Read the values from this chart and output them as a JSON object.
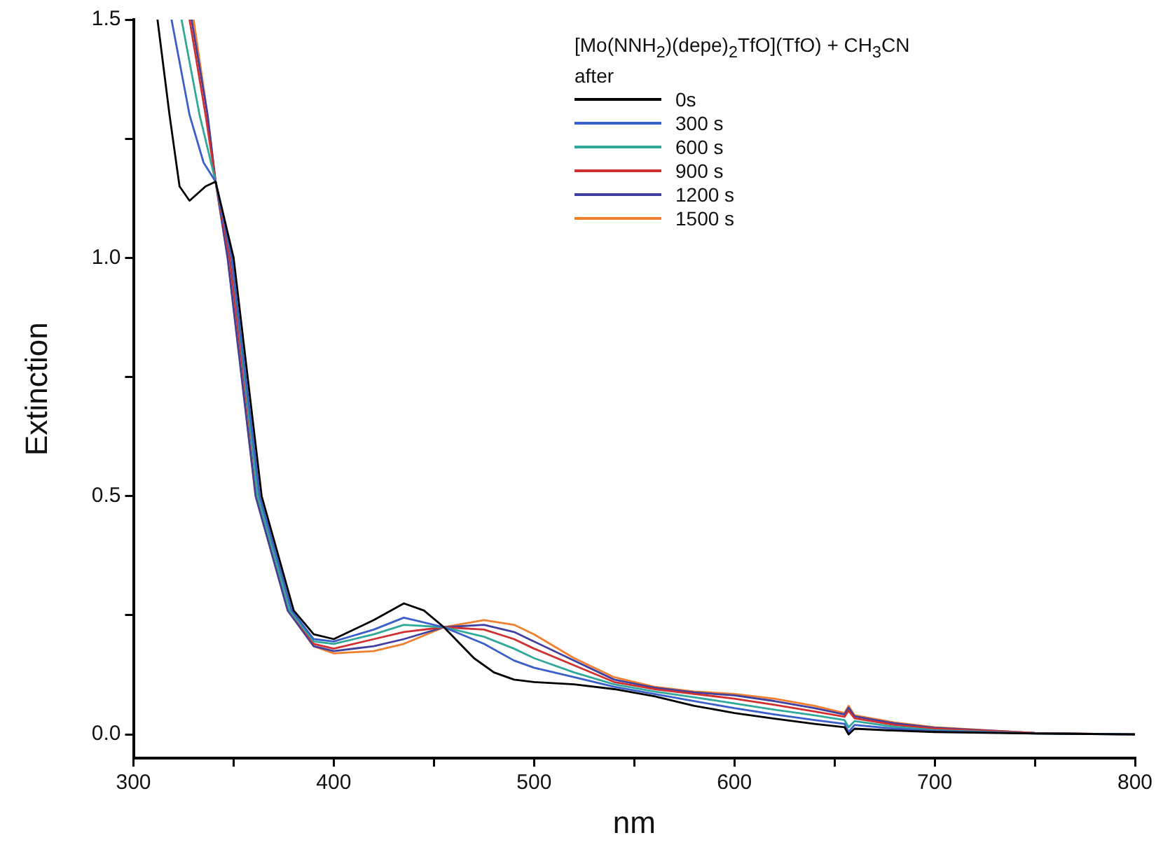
{
  "chart_data": {
    "type": "line",
    "xlabel": "nm",
    "ylabel": "Extinction",
    "legend_title": "[Mo(NNH$_{2}$)(depe)$_{2}$TfO](TfO) + CH$_{3}$CN\nafter",
    "legend": "top right",
    "grid": false,
    "marker": "none",
    "line_style": "solid",
    "xlim": [
      300,
      800
    ],
    "ylim": [
      -0.05,
      1.5
    ],
    "xticks": [
      300,
      {
        "value": 350,
        "label": null
      },
      400,
      {
        "value": 450,
        "label": null
      },
      500,
      {
        "value": 550,
        "label": null
      },
      600,
      {
        "value": 650,
        "label": null
      },
      700,
      {
        "value": 750,
        "label": null
      },
      800
    ],
    "yticks": [
      {
        "value": 0,
        "label": "0.0"
      },
      {
        "value": 0.25,
        "label": null
      },
      {
        "value": 0.5,
        "label": "0.5"
      },
      {
        "value": 0.75,
        "label": null
      },
      {
        "value": 1,
        "label": "1.0"
      },
      {
        "value": 1.25,
        "label": null
      },
      {
        "value": 1.5,
        "label": "1.5"
      }
    ],
    "series": [
      {
        "name": "0s",
        "color": "#000000",
        "x": [
          312,
          318,
          323,
          328,
          336,
          341,
          350,
          364,
          380,
          390,
          400,
          420,
          435,
          445,
          455,
          470,
          480,
          490,
          500,
          520,
          540,
          560,
          580,
          600,
          620,
          640,
          655,
          657,
          660,
          680,
          700,
          750,
          800
        ],
        "values": [
          1.5,
          1.3,
          1.15,
          1.12,
          1.15,
          1.16,
          1.0,
          0.5,
          0.26,
          0.21,
          0.2,
          0.24,
          0.275,
          0.26,
          0.225,
          0.16,
          0.13,
          0.115,
          0.11,
          0.105,
          0.095,
          0.08,
          0.06,
          0.045,
          0.033,
          0.022,
          0.015,
          0.0,
          0.012,
          0.008,
          0.005,
          0.002,
          0.0
        ]
      },
      {
        "name": "300 s",
        "color": "#3a5fc8",
        "x": [
          319,
          328,
          335,
          341,
          349,
          363,
          379,
          390,
          400,
          420,
          435,
          455,
          475,
          490,
          500,
          520,
          540,
          560,
          580,
          600,
          620,
          640,
          655,
          657,
          660,
          680,
          700,
          750,
          800
        ],
        "values": [
          1.5,
          1.3,
          1.2,
          1.16,
          1.0,
          0.5,
          0.26,
          0.2,
          0.195,
          0.22,
          0.245,
          0.225,
          0.19,
          0.155,
          0.14,
          0.12,
          0.1,
          0.085,
          0.07,
          0.055,
          0.042,
          0.03,
          0.022,
          0.005,
          0.02,
          0.012,
          0.007,
          0.002,
          0.0
        ]
      },
      {
        "name": "600 s",
        "color": "#30a89a",
        "x": [
          324,
          333,
          341,
          349,
          362,
          378,
          390,
          400,
          420,
          435,
          455,
          475,
          490,
          500,
          520,
          540,
          560,
          580,
          600,
          620,
          640,
          655,
          657,
          660,
          680,
          700,
          750,
          800
        ],
        "values": [
          1.5,
          1.3,
          1.16,
          1.0,
          0.5,
          0.26,
          0.195,
          0.19,
          0.21,
          0.23,
          0.225,
          0.205,
          0.18,
          0.16,
          0.13,
          0.105,
          0.09,
          0.078,
          0.065,
          0.052,
          0.04,
          0.03,
          0.015,
          0.028,
          0.016,
          0.009,
          0.002,
          0.0
        ]
      },
      {
        "name": "900 s",
        "color": "#d03030",
        "x": [
          328,
          336,
          341,
          348,
          362,
          378,
          390,
          400,
          420,
          435,
          455,
          475,
          490,
          500,
          520,
          540,
          560,
          580,
          600,
          620,
          640,
          655,
          657,
          660,
          680,
          700,
          750,
          800
        ],
        "values": [
          1.5,
          1.3,
          1.16,
          1.0,
          0.5,
          0.26,
          0.19,
          0.18,
          0.2,
          0.215,
          0.225,
          0.22,
          0.2,
          0.18,
          0.145,
          0.11,
          0.095,
          0.085,
          0.075,
          0.062,
          0.048,
          0.037,
          0.05,
          0.034,
          0.02,
          0.012,
          0.003,
          0.0
        ]
      },
      {
        "name": "1200 s",
        "color": "#4040a0",
        "x": [
          329,
          337,
          341,
          347,
          361,
          377,
          390,
          400,
          420,
          435,
          455,
          475,
          490,
          500,
          520,
          540,
          560,
          580,
          600,
          620,
          640,
          655,
          657,
          660,
          680,
          700,
          750,
          800
        ],
        "values": [
          1.5,
          1.3,
          1.16,
          1.0,
          0.5,
          0.26,
          0.185,
          0.175,
          0.185,
          0.2,
          0.225,
          0.23,
          0.215,
          0.195,
          0.155,
          0.115,
          0.098,
          0.088,
          0.082,
          0.07,
          0.055,
          0.042,
          0.056,
          0.038,
          0.023,
          0.014,
          0.003,
          0.0
        ]
      },
      {
        "name": "1500 s",
        "color": "#f07f30",
        "x": [
          330,
          337,
          341,
          347,
          361,
          377,
          390,
          400,
          420,
          435,
          455,
          475,
          490,
          500,
          520,
          540,
          560,
          580,
          600,
          620,
          640,
          655,
          657,
          660,
          680,
          700,
          750,
          800
        ],
        "values": [
          1.5,
          1.3,
          1.16,
          1.0,
          0.5,
          0.26,
          0.185,
          0.17,
          0.175,
          0.19,
          0.225,
          0.24,
          0.23,
          0.21,
          0.16,
          0.12,
          0.1,
          0.09,
          0.085,
          0.075,
          0.06,
          0.045,
          0.06,
          0.04,
          0.025,
          0.015,
          0.003,
          0.0
        ]
      }
    ]
  }
}
